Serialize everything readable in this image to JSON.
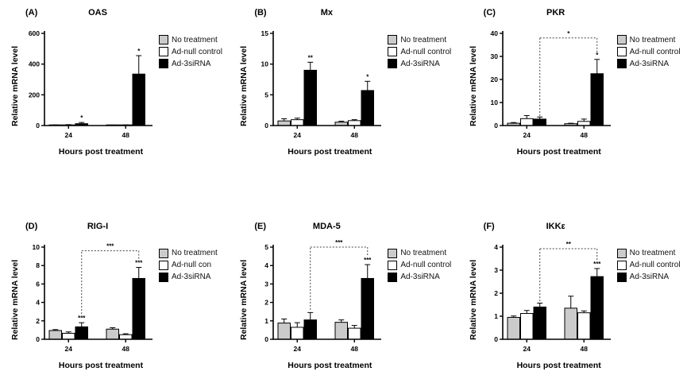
{
  "figure": {
    "background": "#ffffff"
  },
  "bar_colors": {
    "no_treatment": "#cbcbcb",
    "ad_null": "#ffffff",
    "ad_3sirna": "#000000"
  },
  "chart_data": [
    {
      "type": "bar",
      "panel_label": "(A)",
      "title": "OAS",
      "ylabel": "Relative mRNA level",
      "xlabel": "Hours post treatment",
      "ylim": [
        0,
        600
      ],
      "yticks": [
        0,
        200,
        400,
        600
      ],
      "categories": [
        "24",
        "48"
      ],
      "series": [
        {
          "name": "No treatment",
          "color": "#cbcbcb",
          "values": [
            3,
            2
          ],
          "errors": [
            1,
            1
          ]
        },
        {
          "name": "Ad-null control",
          "color": "#ffffff",
          "values": [
            4,
            3
          ],
          "errors": [
            2,
            1
          ]
        },
        {
          "name": "Ad-3siRNA",
          "color": "#000000",
          "values": [
            12,
            335
          ],
          "errors": [
            8,
            120
          ]
        }
      ],
      "significance": [
        {
          "series": 2,
          "group": 0,
          "label": "*"
        },
        {
          "series": 2,
          "group": 1,
          "label": "*"
        }
      ],
      "bracket": null
    },
    {
      "type": "bar",
      "panel_label": "(B)",
      "title": "Mx",
      "ylabel": "Relative mRNA level",
      "xlabel": "Hours post treatment",
      "ylim": [
        0,
        15
      ],
      "yticks": [
        0,
        5,
        10,
        15
      ],
      "categories": [
        "24",
        "48"
      ],
      "series": [
        {
          "name": "No treatment",
          "color": "#cbcbcb",
          "values": [
            0.75,
            0.55
          ],
          "errors": [
            0.35,
            0.15
          ]
        },
        {
          "name": "Ad-null control",
          "color": "#ffffff",
          "values": [
            0.95,
            0.8
          ],
          "errors": [
            0.25,
            0.15
          ]
        },
        {
          "name": "Ad-3siRNA",
          "color": "#000000",
          "values": [
            9.0,
            5.7
          ],
          "errors": [
            1.3,
            1.5
          ]
        }
      ],
      "significance": [
        {
          "series": 2,
          "group": 0,
          "label": "**"
        },
        {
          "series": 2,
          "group": 1,
          "label": "*"
        }
      ],
      "bracket": null
    },
    {
      "type": "bar",
      "panel_label": "(C)",
      "title": "PKR",
      "ylabel": "Relative mRNA level",
      "xlabel": "Hours post treatment",
      "ylim": [
        0,
        40
      ],
      "yticks": [
        0,
        10,
        20,
        30,
        40
      ],
      "categories": [
        "24",
        "48"
      ],
      "series": [
        {
          "name": "No treatment",
          "color": "#cbcbcb",
          "values": [
            1.0,
            0.8
          ],
          "errors": [
            0.3,
            0.2
          ]
        },
        {
          "name": "Ad-null control",
          "color": "#ffffff",
          "values": [
            3.0,
            1.8
          ],
          "errors": [
            1.3,
            1.0
          ]
        },
        {
          "name": "Ad-3siRNA",
          "color": "#000000",
          "values": [
            2.8,
            22.5
          ],
          "errors": [
            0.9,
            6.2
          ]
        }
      ],
      "significance": [
        {
          "series": 2,
          "group": 1,
          "label": "*"
        }
      ],
      "bracket": {
        "label": "*",
        "top": 38,
        "left_start": 4.2,
        "right_end": 31
      }
    },
    {
      "type": "bar",
      "panel_label": "(D)",
      "title": "RIG-I",
      "ylabel": "Relative mRNA level",
      "xlabel": "Hours post treatment",
      "ylim": [
        0,
        10
      ],
      "yticks": [
        0,
        2,
        4,
        6,
        8,
        10
      ],
      "categories": [
        "24",
        "48"
      ],
      "series": [
        {
          "name": "No treatment",
          "color": "#cbcbcb",
          "values": [
            0.95,
            1.1
          ],
          "errors": [
            0.1,
            0.15
          ]
        },
        {
          "name": "Ad-null con",
          "color": "#ffffff",
          "values": [
            0.65,
            0.5
          ],
          "errors": [
            0.15,
            0.1
          ]
        },
        {
          "name": "Ad-3siRNA",
          "color": "#000000",
          "values": [
            1.35,
            6.6
          ],
          "errors": [
            0.45,
            1.2
          ]
        }
      ],
      "significance": [
        {
          "series": 2,
          "group": 0,
          "label": "***"
        },
        {
          "series": 2,
          "group": 1,
          "label": "***"
        }
      ],
      "bracket": {
        "label": "***",
        "top": 9.6,
        "left_start": 2.4,
        "right_end": 8.6
      }
    },
    {
      "type": "bar",
      "panel_label": "(E)",
      "title": "MDA-5",
      "ylabel": "Relative mRNA level",
      "xlabel": "Hours post treatment",
      "ylim": [
        0,
        5
      ],
      "yticks": [
        0,
        1,
        2,
        3,
        4,
        5
      ],
      "categories": [
        "24",
        "48"
      ],
      "series": [
        {
          "name": "No treatment",
          "color": "#cbcbcb",
          "values": [
            0.88,
            0.92
          ],
          "errors": [
            0.22,
            0.13
          ]
        },
        {
          "name": "Ad-null control",
          "color": "#ffffff",
          "values": [
            0.65,
            0.6
          ],
          "errors": [
            0.25,
            0.15
          ]
        },
        {
          "name": "Ad-3siRNA",
          "color": "#000000",
          "values": [
            1.05,
            3.3
          ],
          "errors": [
            0.4,
            0.75
          ]
        }
      ],
      "significance": [
        {
          "series": 2,
          "group": 1,
          "label": "***"
        }
      ],
      "bracket": {
        "label": "***",
        "top": 5.0,
        "left_start": 1.6,
        "right_end": 4.5
      }
    },
    {
      "type": "bar",
      "panel_label": "(F)",
      "title": "IKKε",
      "ylabel": "Relative mRNA level",
      "xlabel": "Hours post treatment",
      "ylim": [
        0,
        4
      ],
      "yticks": [
        0,
        1,
        2,
        3,
        4
      ],
      "categories": [
        "24",
        "48"
      ],
      "series": [
        {
          "name": "No treatment",
          "color": "#cbcbcb",
          "values": [
            0.95,
            1.35
          ],
          "errors": [
            0.06,
            0.52
          ]
        },
        {
          "name": "Ad-null control",
          "color": "#ffffff",
          "values": [
            1.12,
            1.15
          ],
          "errors": [
            0.13,
            0.08
          ]
        },
        {
          "name": "Ad-3siRNA",
          "color": "#000000",
          "values": [
            1.4,
            2.72
          ],
          "errors": [
            0.17,
            0.35
          ]
        }
      ],
      "significance": [
        {
          "series": 2,
          "group": 1,
          "label": "***"
        }
      ],
      "bracket": {
        "label": "**",
        "top": 3.93,
        "left_start": 1.65,
        "right_end": 3.3
      }
    }
  ]
}
